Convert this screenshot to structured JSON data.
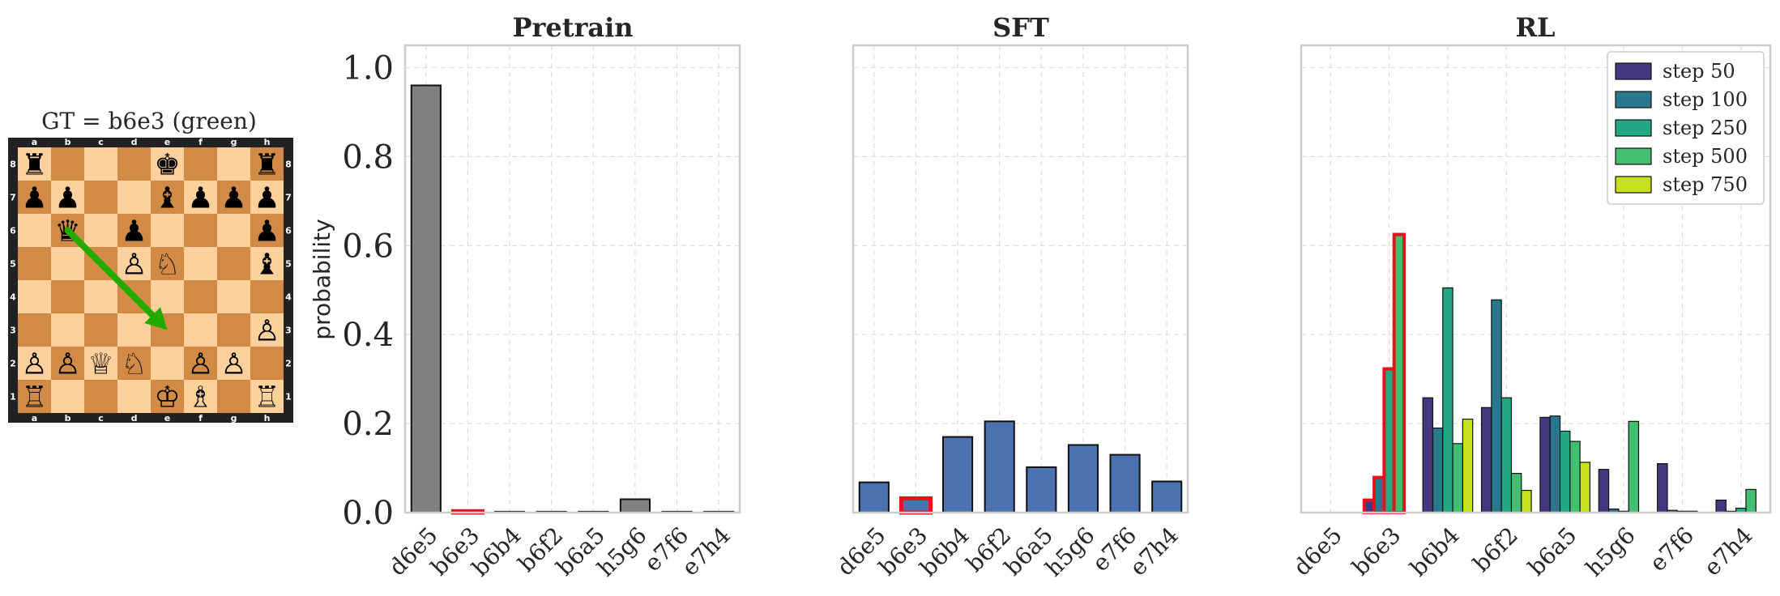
{
  "board": {
    "title": "GT = b6e3  (green)",
    "files": [
      "a",
      "b",
      "c",
      "d",
      "e",
      "f",
      "g",
      "h"
    ],
    "ranks": [
      "8",
      "7",
      "6",
      "5",
      "4",
      "3",
      "2",
      "1"
    ],
    "rows": [
      "r...k..r",
      "pp..bppp",
      ".q.p...p",
      "...PN..b",
      "........",
      ".......P",
      "PPQN.PP.",
      "R...KB.R"
    ],
    "arrow": {
      "from": "b6",
      "to": "e3",
      "color": "#22aa00"
    },
    "light_color": "#fdd09c",
    "dark_color": "#d18b47",
    "frame_color": "#222222"
  },
  "chart_data": [
    {
      "type": "bar",
      "title": "Pretrain",
      "ylabel": "probability",
      "categories": [
        "d6e5",
        "b6e3",
        "b6b4",
        "b6f2",
        "b6a5",
        "h5g6",
        "e7f6",
        "e7h4"
      ],
      "values": [
        0.96,
        0.003,
        0.002,
        0.002,
        0.002,
        0.03,
        0.002,
        0.002
      ],
      "highlight_index": 1,
      "ylim": [
        0,
        1.05
      ],
      "yticks": [
        "0.0",
        "0.2",
        "0.4",
        "0.6",
        "0.8",
        "1.0"
      ],
      "grid": true,
      "bar_color": "#808080"
    },
    {
      "type": "bar",
      "title": "SFT",
      "categories": [
        "d6e5",
        "b6e3",
        "b6b4",
        "b6f2",
        "b6a5",
        "h5g6",
        "e7f6",
        "e7h4"
      ],
      "values": [
        0.068,
        0.032,
        0.17,
        0.205,
        0.102,
        0.152,
        0.13,
        0.07
      ],
      "highlight_index": 1,
      "ylim": [
        0,
        1.05
      ],
      "grid": true,
      "bar_color": "#4c72b0"
    },
    {
      "type": "bar",
      "title": "RL",
      "categories": [
        "d6e5",
        "b6e3",
        "b6b4",
        "b6f2",
        "b6a5",
        "h5g6",
        "e7f6",
        "e7h4"
      ],
      "ylim": [
        0,
        1.05
      ],
      "grid": true,
      "highlight_index": 1,
      "legend": "top-right",
      "series": [
        {
          "name": "step 50",
          "color": "#453781",
          "values": [
            0.0,
            0.028,
            0.258,
            0.236,
            0.214,
            0.097,
            0.11,
            0.028
          ]
        },
        {
          "name": "step 100",
          "color": "#2a788e",
          "values": [
            0.0,
            0.079,
            0.19,
            0.478,
            0.217,
            0.008,
            0.005,
            0.003
          ]
        },
        {
          "name": "step 250",
          "color": "#22a884",
          "values": [
            0.0,
            0.323,
            0.505,
            0.258,
            0.183,
            0.003,
            0.003,
            0.01
          ]
        },
        {
          "name": "step 500",
          "color": "#43bf71",
          "values": [
            0.0,
            0.625,
            0.155,
            0.088,
            0.16,
            0.205,
            0.003,
            0.052
          ]
        },
        {
          "name": "step 750",
          "color": "#c7e020",
          "values": [
            0.0,
            0.0,
            0.21,
            0.05,
            0.113,
            0.0,
            0.0,
            0.0
          ]
        }
      ]
    }
  ]
}
